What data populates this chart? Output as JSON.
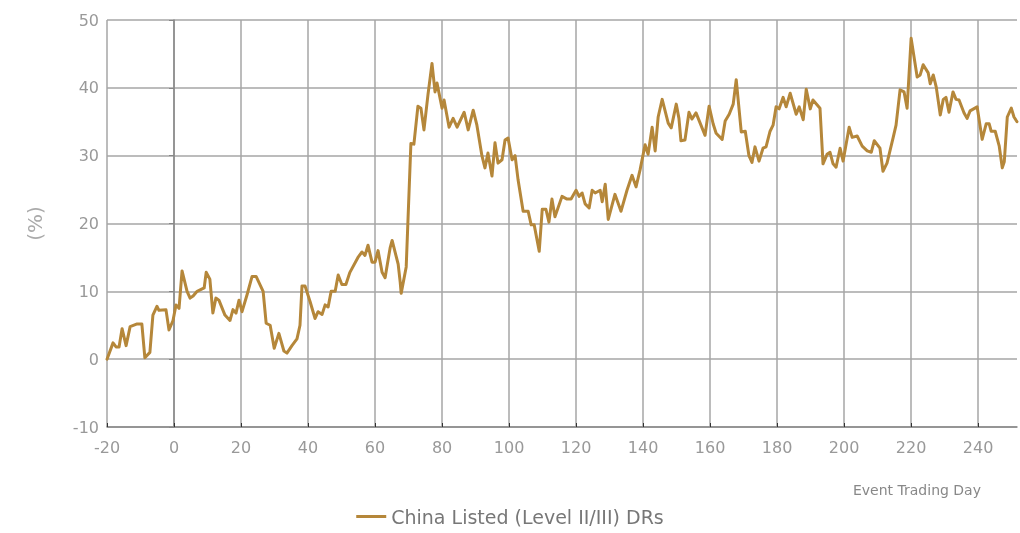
{
  "chart_data": {
    "type": "line",
    "xlabel": "Event Trading Day",
    "ylabel": "(%)",
    "xlim": [
      -20,
      251.6
    ],
    "xticks": [
      -20,
      0,
      20,
      40,
      60,
      80,
      100,
      120,
      140,
      160,
      180,
      200,
      220,
      240
    ],
    "ylim": [
      -10,
      50
    ],
    "yticks": [
      -10,
      0,
      10,
      20,
      30,
      40,
      50
    ],
    "grid": true,
    "legend": "bottom",
    "marker": "none",
    "line_style": "solid",
    "series": [
      {
        "name": "China Listed (Level II/III) DRs",
        "color": "#b5873a",
        "x": [
          -20,
          -18.2,
          -17.3,
          -16.4,
          -15.5,
          -14.3,
          -13.1,
          -11,
          -9.6,
          -8.7,
          -7.2,
          -6.3,
          -5.1,
          -4.5,
          -2.4,
          -1.5,
          -0.3,
          0.6,
          1.5,
          2.4,
          3.9,
          4.8,
          5.7,
          6.9,
          9,
          9.6,
          10.7,
          11.6,
          12.5,
          13.4,
          15.2,
          16.7,
          17.6,
          18.5,
          19.4,
          20.3,
          21.8,
          23.3,
          24.5,
          26.6,
          27.5,
          28.7,
          29.9,
          31.3,
          32.8,
          33.7,
          35.2,
          36.7,
          37.6,
          38.2,
          39.1,
          40.6,
          42.1,
          43,
          44.2,
          45.1,
          46,
          46.9,
          48.1,
          49,
          50.1,
          51.3,
          52.5,
          54.9,
          56.1,
          57,
          57.9,
          59.1,
          60,
          60.9,
          62.1,
          63,
          64.5,
          65.1,
          66.9,
          67.5,
          67.8,
          69.3,
          70.7,
          71.6,
          72.8,
          73.7,
          74.6,
          75.8,
          77,
          77.9,
          78.5,
          80,
          80.6,
          82.1,
          83.3,
          84.5,
          86.6,
          87.8,
          89.3,
          90.4,
          91.9,
          92.8,
          93.7,
          94.9,
          95.8,
          96.7,
          97.9,
          98.8,
          99.7,
          100.9,
          101.8,
          102.7,
          104.2,
          105.7,
          106.6,
          107.5,
          109,
          109.9,
          111,
          111.9,
          112.8,
          113.7,
          115.8,
          117.3,
          118.5,
          120,
          120.9,
          121.8,
          122.7,
          123.9,
          124.8,
          125.7,
          127.2,
          127.8,
          128.7,
          129.6,
          131.6,
          133.4,
          135.2,
          136.7,
          137.9,
          139.1,
          140.6,
          141.5,
          142.7,
          143.6,
          144.5,
          145.7,
          147.5,
          148.4,
          149.9,
          150.7,
          151.3,
          152.5,
          153.7,
          154.6,
          155.8,
          157.6,
          158.5,
          159.7,
          160.9,
          161.8,
          163.6,
          164.5,
          165.7,
          166.9,
          167.8,
          169.3,
          170.5,
          171.6,
          172.5,
          173.4,
          174.6,
          175.8,
          176.7,
          177.9,
          178.8,
          179.7,
          180.6,
          181.8,
          182.7,
          183.9,
          185.7,
          186.6,
          187.8,
          188.7,
          189.9,
          190.7,
          192.8,
          193.7,
          194.9,
          195.8,
          196.7,
          197.6,
          198.8,
          199.7,
          201.5,
          202.4,
          203.9,
          205.4,
          206.9,
          208.1,
          209,
          210.7,
          211.6,
          212.8,
          214.6,
          215.5,
          216.7,
          217.9,
          218.8,
          220,
          221.8,
          222.7,
          223.6,
          225.1,
          225.7,
          226.6,
          227.5,
          228.7,
          229.6,
          230.4,
          231.3,
          232.5,
          233.4,
          234.3,
          235.8,
          236.7,
          237.6,
          239.7,
          241.2,
          242.4,
          243.3,
          243.9,
          245.1,
          246.3,
          247.2,
          247.8,
          248.7,
          249.9,
          250.7,
          251.6
        ],
        "values": [
          0,
          2.4,
          1.8,
          1.8,
          4.5,
          2,
          4.8,
          5.2,
          5.2,
          0.2,
          1,
          6.5,
          7.8,
          7.2,
          7.3,
          4.3,
          5.7,
          8,
          7.5,
          13,
          10,
          9,
          9.3,
          10,
          10.5,
          12.8,
          11.8,
          6.8,
          9,
          8.7,
          6.5,
          5.7,
          7.3,
          6.8,
          8.7,
          7,
          9.5,
          12.2,
          12.2,
          10,
          5.3,
          5,
          1.6,
          3.8,
          1.2,
          0.9,
          2,
          3,
          5,
          10.8,
          10.8,
          8.5,
          6,
          7,
          6.6,
          8,
          7.7,
          10,
          10,
          12.4,
          11,
          11,
          12.8,
          15,
          15.8,
          15.3,
          16.8,
          14.3,
          14.3,
          16,
          12.8,
          12,
          16.4,
          17.5,
          14,
          11.4,
          9.7,
          13.6,
          31.8,
          31.7,
          37.3,
          37,
          33.8,
          39,
          43.6,
          39.4,
          40.7,
          37,
          38.2,
          34.2,
          35.5,
          34.2,
          36.4,
          33.8,
          36.7,
          34.5,
          30,
          28.2,
          30.4,
          27,
          31.9,
          28.9,
          29.4,
          32.3,
          32.6,
          29.4,
          30,
          26.4,
          21.8,
          21.8,
          19.8,
          19.8,
          15.9,
          22.1,
          22.1,
          20.2,
          23.6,
          21,
          24,
          23.6,
          23.6,
          24.9,
          24,
          24.5,
          22.9,
          22.3,
          24.9,
          24.5,
          24.9,
          23.2,
          25.8,
          20.6,
          24.3,
          21.8,
          24.9,
          27.1,
          25.4,
          27.9,
          31.6,
          30.2,
          34.2,
          30.7,
          35.7,
          38.3,
          34.8,
          34.1,
          37.6,
          35.5,
          32.2,
          32.3,
          36.4,
          35.4,
          36.3,
          34.1,
          33,
          37.3,
          34.7,
          33.3,
          32.4,
          35.1,
          36.1,
          37.6,
          41.2,
          33.5,
          33.6,
          30,
          29,
          31.3,
          29.2,
          31.1,
          31.3,
          33.6,
          34.5,
          37.2,
          36.9,
          38.6,
          37.2,
          39.2,
          36.1,
          37.2,
          35.3,
          39.8,
          36.9,
          38.2,
          37,
          28.8,
          30.2,
          30.5,
          28.8,
          28.3,
          31.1,
          29.2,
          34.2,
          32.7,
          32.9,
          31.4,
          30.7,
          30.5,
          32.2,
          31.1,
          27.7,
          28.9,
          32.6,
          34.5,
          39.7,
          39.4,
          37,
          47.3,
          41.6,
          41.9,
          43.4,
          42.2,
          40.6,
          41.9,
          40.1,
          36,
          38.3,
          38.6,
          36.4,
          39.4,
          38.3,
          38.2,
          36.3,
          35.5,
          36.6,
          37.2,
          32.4,
          34.7,
          34.7,
          33.6,
          33.6,
          31.4,
          28.2,
          29.1,
          35.7,
          37,
          35.7,
          35
        ]
      }
    ]
  }
}
